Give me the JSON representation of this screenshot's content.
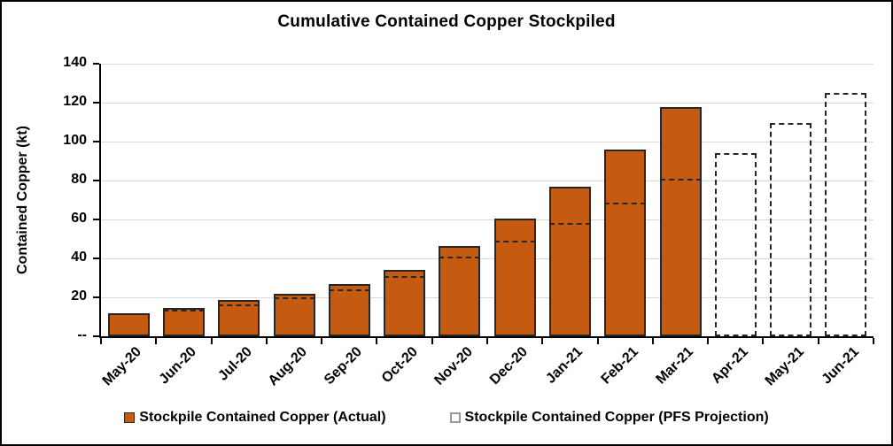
{
  "chart_data": {
    "type": "bar",
    "title": "Cumulative Contained Copper Stockpiled",
    "ylabel": "Contained Copper (kt)",
    "xlabel": "",
    "categories": [
      "May-20",
      "Jun-20",
      "Jul-20",
      "Aug-20",
      "Sep-20",
      "Oct-20",
      "Nov-20",
      "Dec-20",
      "Jan-21",
      "Feb-21",
      "Mar-21",
      "Apr-21",
      "May-21",
      "Jun-21"
    ],
    "series": [
      {
        "name": "Stockpile Contained Copper (Actual)",
        "style": "solid-fill",
        "color": "#C55A11",
        "border_color": "#262626",
        "values": [
          12,
          14.5,
          18.5,
          22,
          27,
          34,
          46.5,
          60.5,
          77,
          96,
          117.5,
          null,
          null,
          null
        ]
      },
      {
        "name": "Stockpile Contained Copper (PFS Projection)",
        "style": "dashed-outline",
        "color": "#262626",
        "values": [
          12,
          13.5,
          16.5,
          20,
          24,
          31,
          41,
          49,
          58,
          68.5,
          81,
          94,
          109.5,
          125
        ]
      }
    ],
    "ylim": [
      0,
      140
    ],
    "ytick_interval": 20,
    "ytick_labels": [
      "--",
      "20",
      "40",
      "60",
      "80",
      "100",
      "120",
      "140"
    ],
    "grid": true,
    "gridline_color": "#d9d9d9",
    "legend_position": "bottom"
  }
}
